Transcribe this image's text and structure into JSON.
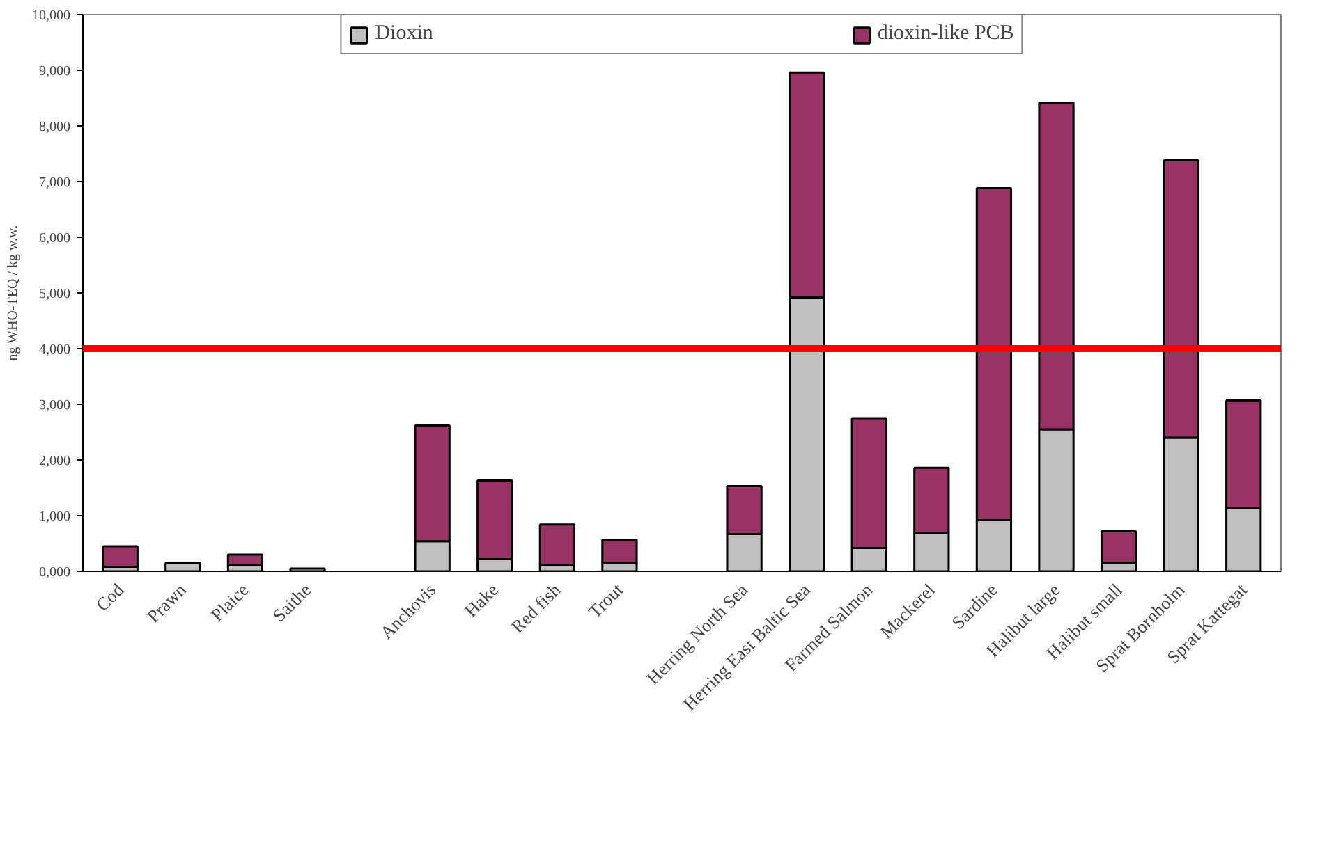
{
  "chart_data": {
    "type": "bar",
    "stacked": true,
    "ylabel": "ng WHO-TEQ / kg w.w.",
    "categories": [
      "Cod",
      "Prawn",
      "Plaice",
      "Saithe",
      null,
      "Anchovis",
      "Hake",
      "Red fish",
      "Trout",
      null,
      "Herring North Sea",
      "Herring East Baltic Sea",
      "Farmed Salmon",
      "Mackerel",
      "Sardine",
      "Halibut large",
      "Halibut small",
      "Sprat Bornholm",
      "Sprat Kattegat"
    ],
    "series": [
      {
        "name": "Dioxin",
        "color": "#c0c0c0",
        "values": [
          80,
          150,
          120,
          50,
          null,
          540,
          220,
          120,
          150,
          null,
          670,
          4920,
          420,
          690,
          920,
          2550,
          150,
          2400,
          1140
        ]
      },
      {
        "name": "dioxin-like PCB",
        "color": "#993366",
        "values": [
          370,
          null,
          180,
          null,
          null,
          2080,
          1410,
          720,
          420,
          null,
          860,
          4040,
          2330,
          1170,
          5960,
          5870,
          570,
          4980,
          1930
        ]
      }
    ],
    "ylim": [
      0,
      10000
    ],
    "yticks": [
      {
        "value": 0,
        "label": "0,000"
      },
      {
        "value": 1000,
        "label": "1,000"
      },
      {
        "value": 2000,
        "label": "2,000"
      },
      {
        "value": 3000,
        "label": "3,000"
      },
      {
        "value": 4000,
        "label": "4,000"
      },
      {
        "value": 5000,
        "label": "5,000"
      },
      {
        "value": 6000,
        "label": "6,000"
      },
      {
        "value": 7000,
        "label": "7,000"
      },
      {
        "value": 8000,
        "label": "8,000"
      },
      {
        "value": 9000,
        "label": "9,000"
      },
      {
        "value": 10000,
        "label": "10,000"
      }
    ],
    "ref_lines": [
      {
        "axis": "y",
        "value": 4000,
        "color": "#ff0000"
      }
    ],
    "grid": false,
    "legend": "top"
  }
}
